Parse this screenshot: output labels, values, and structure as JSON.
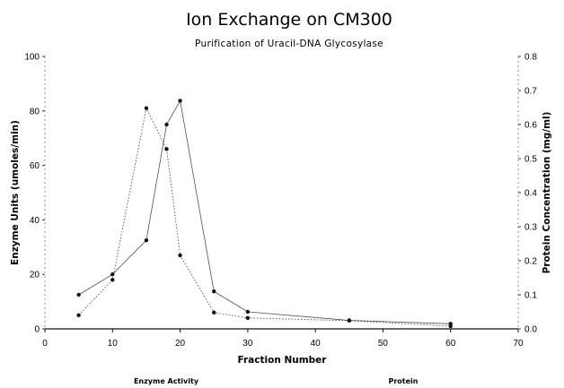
{
  "chart_data": {
    "type": "line",
    "title": "Ion Exchange on CM300",
    "subtitle": "Purification of Uracil-DNA Glycosylase",
    "xlabel": "Fraction Number",
    "ylabel": "Enzyme Units (umoles/min)",
    "y2label": "Protein Concentration (mg/ml)",
    "xlim": [
      0,
      70
    ],
    "ylim": [
      0,
      100
    ],
    "y2lim": [
      0,
      0.8
    ],
    "x_ticks": [
      "0",
      "10",
      "20",
      "30",
      "40",
      "50",
      "60",
      "70"
    ],
    "y_ticks": [
      "0",
      "20",
      "40",
      "60",
      "80",
      "100"
    ],
    "y2_ticks": [
      "0.0",
      "0.1",
      "0.2",
      "0.3",
      "0.4",
      "0.5",
      "0.6",
      "0.7",
      "0.8"
    ],
    "legend_position": "bottom",
    "grid": false,
    "series": [
      {
        "name": "Enzyme Activity",
        "axis": "left",
        "color": "#111111",
        "style": "dotted",
        "points": [
          [
            5,
            5
          ],
          [
            10,
            18
          ],
          [
            15,
            81
          ],
          [
            18,
            66
          ],
          [
            20,
            27
          ],
          [
            25,
            6
          ],
          [
            30,
            4
          ],
          [
            45,
            3
          ],
          [
            60,
            1
          ]
        ]
      },
      {
        "name": "Protein",
        "axis": "right",
        "color": "#333333",
        "style": "solid",
        "points": [
          [
            5,
            0.1
          ],
          [
            10,
            0.16
          ],
          [
            15,
            0.26
          ],
          [
            18,
            0.6
          ],
          [
            20,
            0.67
          ],
          [
            25,
            0.11
          ],
          [
            30,
            0.05
          ],
          [
            45,
            0.025
          ],
          [
            60,
            0.015
          ]
        ]
      }
    ]
  }
}
